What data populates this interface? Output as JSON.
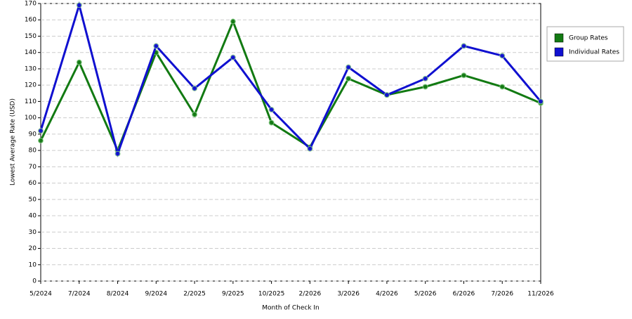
{
  "chart_data": {
    "type": "line",
    "x_label": "Month of Check In",
    "y_label": "Lowest Average Rate (USD)",
    "categories": [
      "5/2024",
      "7/2024",
      "8/2024",
      "9/2024",
      "2/2025",
      "9/2025",
      "10/2025",
      "2/2026",
      "3/2026",
      "4/2026",
      "5/2026",
      "6/2026",
      "7/2026",
      "11/2026"
    ],
    "series": [
      {
        "name": "Group Rates",
        "color": "#127a12",
        "values": [
          86,
          134,
          80,
          140,
          102,
          159,
          97,
          82,
          124,
          114,
          119,
          126,
          119,
          109
        ]
      },
      {
        "name": "Individual Rates",
        "color": "#1010d0",
        "values": [
          92,
          169,
          78,
          144,
          118,
          137,
          105,
          81,
          131,
          114,
          124,
          144,
          138,
          110
        ]
      }
    ],
    "ylim": [
      0,
      170
    ],
    "yticks": [
      0,
      10,
      20,
      30,
      40,
      50,
      60,
      70,
      80,
      90,
      100,
      110,
      120,
      130,
      140,
      150,
      160,
      170
    ],
    "grid": true,
    "legend": "right"
  }
}
